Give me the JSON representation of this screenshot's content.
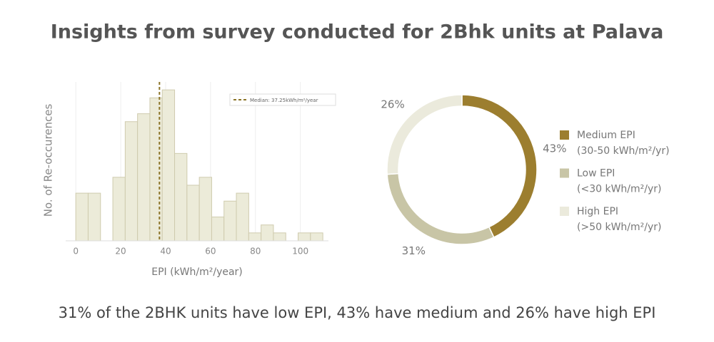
{
  "title": "Insights from survey conducted for 2Bhk units at Palava",
  "caption": "31% of the 2BHK units have low EPI, 43% have medium and 26% have high EPI",
  "chart_data": [
    {
      "type": "histogram",
      "x_label": "EPI (kWh/m²/year)",
      "y_label": "No. of Re-occurences",
      "bins": [
        0,
        5.5,
        11,
        16.5,
        22,
        27.5,
        33,
        38.5,
        44,
        49.5,
        55,
        60.5,
        66,
        71.5,
        77,
        82.5,
        88,
        93.5,
        99,
        104.5,
        110
      ],
      "values": [
        6,
        6,
        0,
        8,
        15,
        16,
        18,
        19,
        11,
        7,
        8,
        3,
        5,
        6,
        1,
        2,
        1,
        0,
        1,
        1
      ],
      "color": "#ecebd9",
      "edge_color": "#cfcbae",
      "xlim": [
        -4.5,
        112.5
      ],
      "xticks": [
        0,
        20,
        40,
        60,
        80,
        100
      ],
      "ylim": [
        0,
        20
      ],
      "grid": true,
      "median": {
        "value": 37.25,
        "label": "Median: 37.25kWh/m²/year",
        "color": "#8b7428"
      }
    },
    {
      "type": "donut",
      "categories": [
        "Medium EPI",
        "Low EPI",
        "High EPI"
      ],
      "category_ranges": [
        "(30-50 kWh/m²/yr)",
        "(<30 kWh/m²/yr)",
        "(>50 kWh/m²/yr)"
      ],
      "values": [
        43,
        31,
        26
      ],
      "value_labels": [
        "43%",
        "31%",
        "26%"
      ],
      "colors": [
        "#9c7e2f",
        "#c8c5a6",
        "#ebeadc"
      ]
    }
  ]
}
